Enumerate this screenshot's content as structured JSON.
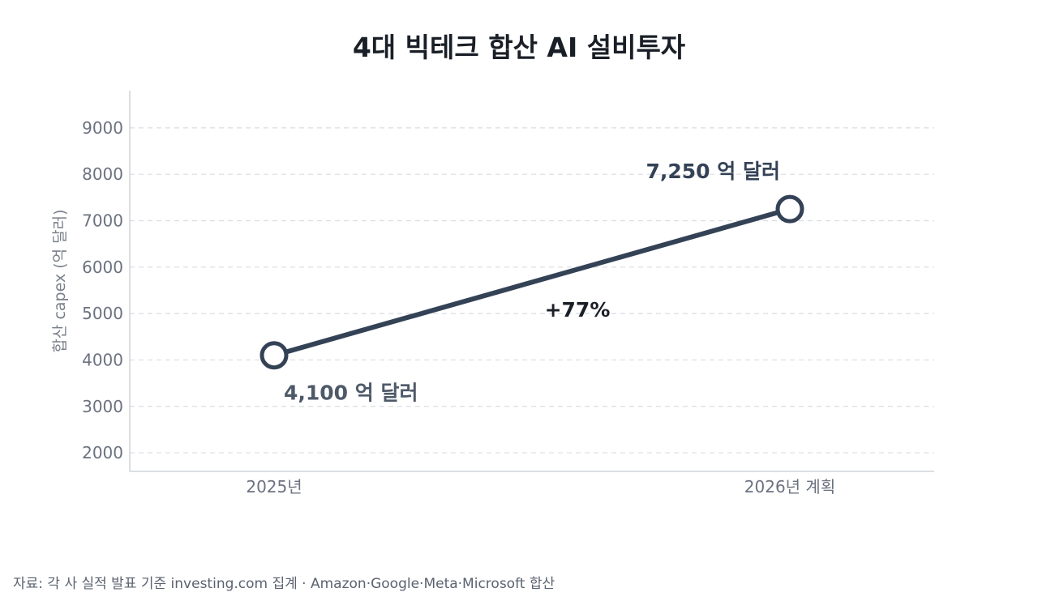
{
  "chart_data": {
    "type": "line",
    "title": "4대 빅테크 합산 AI 설비투자",
    "ylabel": "합산 capex (억 달러)",
    "xlabel": "",
    "categories": [
      "2025년",
      "2026년 계획"
    ],
    "series": [
      {
        "values": [
          4100,
          7250
        ]
      }
    ],
    "point_labels": [
      "4,100 억 달러",
      "7,250 억 달러"
    ],
    "annotation": "+77%",
    "ylim": [
      1600,
      9800
    ],
    "yticks": [
      2000,
      3000,
      4000,
      5000,
      6000,
      7000,
      8000,
      9000
    ],
    "grid": true,
    "colors": {
      "line": "#344256",
      "marker_fill": "#ffffff",
      "low_label": "#4e5968",
      "high_label": "#344256",
      "annotation": "#1a1f27",
      "grid": "#d9dce1",
      "axis": "#c8ccd2",
      "tick_text": "#6b7280"
    }
  },
  "source": "자료: 각 사 실적 발표 기준 investing.com 집계 · Amazon·Google·Meta·Microsoft 합산"
}
